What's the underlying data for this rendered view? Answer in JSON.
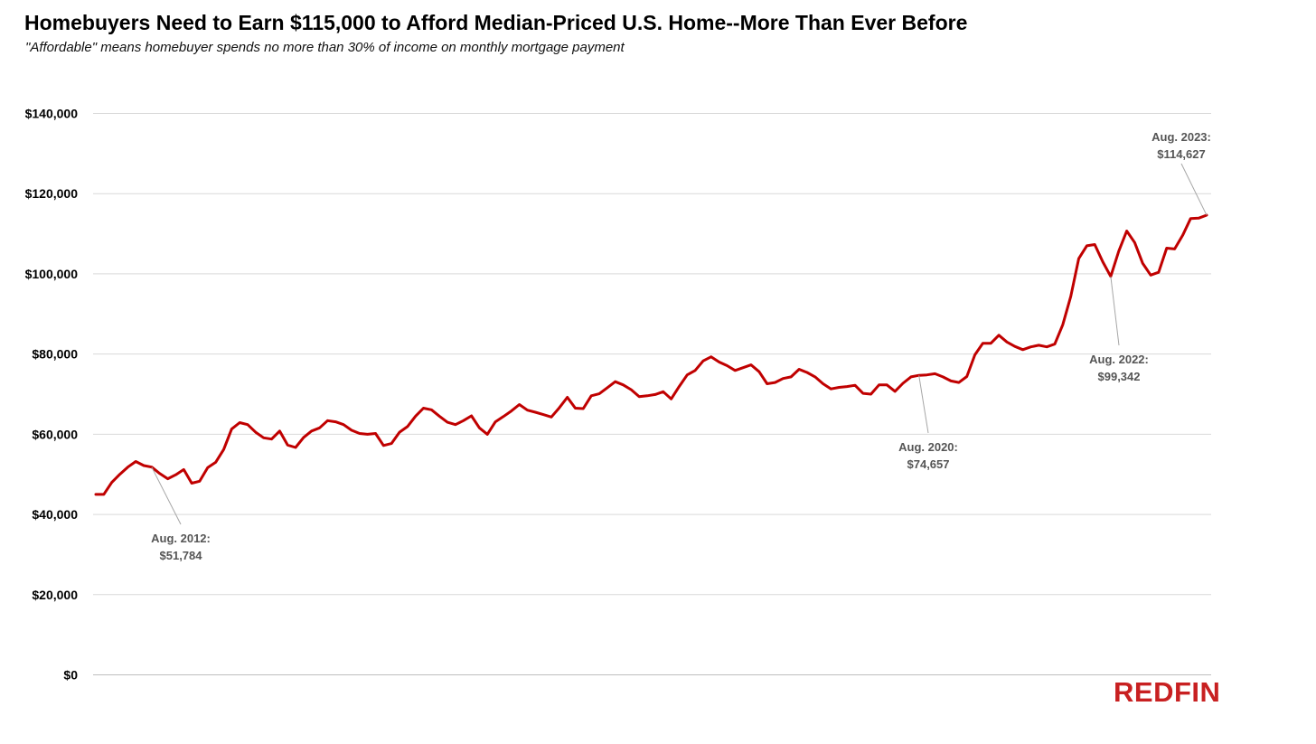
{
  "chart_data": {
    "type": "line",
    "title": "Homebuyers Need to Earn $115,000 to Afford Median-Priced U.S. Home--More Than Ever Before",
    "subtitle": "\"Affordable\" means homebuyer spends no more than 30% of income on monthly mortgage payment",
    "ylim": [
      0,
      140000
    ],
    "yticks": [
      0,
      20000,
      40000,
      60000,
      80000,
      100000,
      120000,
      140000
    ],
    "ytick_labels": [
      "$0",
      "$20,000",
      "$40,000",
      "$60,000",
      "$80,000",
      "$100,000",
      "$120,000",
      "$140,000"
    ],
    "grid": true,
    "x_start": "2012-01",
    "x_end": "2023-08",
    "series": [
      {
        "color": "#c00000",
        "values": [
          45000,
          45000,
          48000,
          50000,
          51800,
          53200,
          52200,
          51800,
          50200,
          48900,
          49900,
          51200,
          47800,
          48300,
          51700,
          53000,
          56200,
          61300,
          62900,
          62400,
          60500,
          59100,
          58800,
          60800,
          57300,
          56700,
          59200,
          60800,
          61600,
          63400,
          63100,
          62400,
          61000,
          60200,
          60000,
          60200,
          57200,
          57700,
          60500,
          61900,
          64500,
          66500,
          66100,
          64500,
          63000,
          62400,
          63400,
          64600,
          61600,
          60000,
          63100,
          64400,
          65800,
          67400,
          66000,
          65500,
          64900,
          64300,
          66600,
          69200,
          66500,
          66400,
          69600,
          70100,
          71600,
          73100,
          72300,
          71100,
          69400,
          69600,
          69900,
          70600,
          68800,
          71900,
          74800,
          75900,
          78300,
          79300,
          78000,
          77100,
          75900,
          76600,
          77300,
          75600,
          72600,
          72900,
          73900,
          74300,
          76200,
          75400,
          74300,
          72600,
          71300,
          71700,
          71900,
          72200,
          70200,
          70000,
          72300,
          72300,
          70700,
          72700,
          74300,
          74700,
          74800,
          75100,
          74300,
          73300,
          72900,
          74400,
          79800,
          82700,
          82700,
          84700,
          83000,
          81900,
          81100,
          81800,
          82200,
          81800,
          82500,
          87300,
          94400,
          103800,
          107000,
          107300,
          103000,
          99342,
          105600,
          110700,
          107800,
          102600,
          99700,
          100400,
          106400,
          106200,
          109600,
          113800,
          113900,
          114627
        ]
      }
    ],
    "annotations": [
      {
        "line1": "Aug. 2012:",
        "line2": "$51,784",
        "date": "2012-08",
        "value": 51784,
        "side": "below"
      },
      {
        "line1": "Aug. 2020:",
        "line2": "$74,657",
        "date": "2020-08",
        "value": 74657,
        "side": "below"
      },
      {
        "line1": "Aug. 2022:",
        "line2": "$99,342",
        "date": "2022-08",
        "value": 99342,
        "side": "below"
      },
      {
        "line1": "Aug. 2023:",
        "line2": "$114,627",
        "date": "2023-08",
        "value": 114627,
        "side": "above"
      }
    ]
  },
  "logo": {
    "text": "REDFIN",
    "color": "#c82021"
  }
}
